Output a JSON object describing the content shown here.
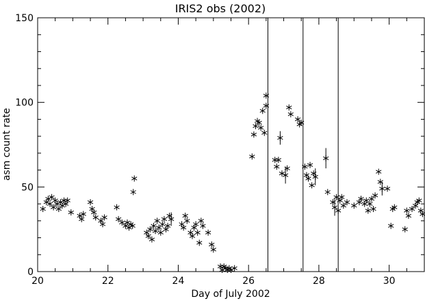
{
  "chart_data": {
    "type": "scatter",
    "title": "IRIS2 obs (2002)",
    "xlabel": "Day of July 2002",
    "ylabel": "asm count rate",
    "xlim": [
      20,
      31
    ],
    "ylim": [
      0,
      150
    ],
    "x_ticks": [
      20,
      22,
      24,
      26,
      28,
      30
    ],
    "x_tick_labels": [
      "20",
      "22",
      "24",
      "26",
      "28",
      "30"
    ],
    "y_ticks": [
      0,
      50,
      100,
      150
    ],
    "y_tick_labels": [
      "0",
      "50",
      "100",
      "150"
    ],
    "grid": false,
    "marker": "asterisk",
    "color": "#000000",
    "vertical_lines": [
      26.55,
      27.55,
      28.55
    ],
    "series": [
      {
        "points": [
          [
            20.15,
            37,
            0
          ],
          [
            20.25,
            41,
            0
          ],
          [
            20.3,
            43,
            0
          ],
          [
            20.35,
            40,
            0
          ],
          [
            20.4,
            44,
            0
          ],
          [
            20.45,
            38,
            0
          ],
          [
            20.5,
            42,
            0
          ],
          [
            20.55,
            40,
            0
          ],
          [
            20.6,
            37,
            0
          ],
          [
            20.65,
            41,
            0
          ],
          [
            20.7,
            39,
            0
          ],
          [
            20.75,
            42,
            0
          ],
          [
            20.8,
            40,
            0
          ],
          [
            20.85,
            42,
            0
          ],
          [
            20.95,
            35,
            0
          ],
          [
            21.2,
            33,
            0
          ],
          [
            21.25,
            31,
            0
          ],
          [
            21.3,
            34,
            0
          ],
          [
            21.5,
            41,
            0
          ],
          [
            21.55,
            37,
            0
          ],
          [
            21.6,
            35,
            0
          ],
          [
            21.65,
            32,
            0
          ],
          [
            21.8,
            30,
            0
          ],
          [
            21.85,
            28,
            0
          ],
          [
            21.9,
            32,
            0
          ],
          [
            22.25,
            38,
            0
          ],
          [
            22.3,
            31,
            0
          ],
          [
            22.4,
            29,
            0
          ],
          [
            22.5,
            27,
            0
          ],
          [
            22.55,
            29,
            0
          ],
          [
            22.6,
            26,
            0
          ],
          [
            22.65,
            28,
            0
          ],
          [
            22.7,
            27,
            0
          ],
          [
            22.72,
            47,
            0
          ],
          [
            22.75,
            55,
            0
          ],
          [
            23.1,
            23,
            0
          ],
          [
            23.15,
            21,
            0
          ],
          [
            23.2,
            25,
            0
          ],
          [
            23.25,
            19,
            0
          ],
          [
            23.3,
            27,
            0
          ],
          [
            23.35,
            24,
            0
          ],
          [
            23.4,
            30,
            0
          ],
          [
            23.45,
            26,
            0
          ],
          [
            23.5,
            23,
            0
          ],
          [
            23.55,
            28,
            0
          ],
          [
            23.6,
            31,
            0
          ],
          [
            23.65,
            25,
            0
          ],
          [
            23.7,
            27,
            0
          ],
          [
            23.75,
            33,
            0
          ],
          [
            23.8,
            31,
            4
          ],
          [
            24.1,
            28,
            0
          ],
          [
            24.15,
            26,
            0
          ],
          [
            24.2,
            33,
            0
          ],
          [
            24.25,
            30,
            0
          ],
          [
            24.35,
            23,
            0
          ],
          [
            24.4,
            21,
            0
          ],
          [
            24.45,
            26,
            0
          ],
          [
            24.5,
            28,
            0
          ],
          [
            24.55,
            23,
            0
          ],
          [
            24.6,
            17,
            0
          ],
          [
            24.65,
            30,
            0
          ],
          [
            24.7,
            27,
            0
          ],
          [
            24.85,
            23,
            0
          ],
          [
            24.95,
            16,
            0
          ],
          [
            25.0,
            13,
            0
          ],
          [
            25.2,
            3,
            0
          ],
          [
            25.25,
            1,
            0
          ],
          [
            25.3,
            3,
            0
          ],
          [
            25.35,
            2,
            0
          ],
          [
            25.4,
            1,
            0
          ],
          [
            25.45,
            2,
            0
          ],
          [
            25.5,
            1,
            0
          ],
          [
            25.6,
            2,
            0
          ],
          [
            26.1,
            68,
            0
          ],
          [
            26.15,
            81,
            0
          ],
          [
            26.2,
            86,
            0
          ],
          [
            26.25,
            89,
            0
          ],
          [
            26.3,
            88,
            0
          ],
          [
            26.35,
            85,
            0
          ],
          [
            26.4,
            95,
            0
          ],
          [
            26.45,
            82,
            0
          ],
          [
            26.5,
            104,
            0
          ],
          [
            26.5,
            98,
            0
          ],
          [
            26.75,
            66,
            0
          ],
          [
            26.8,
            62,
            0
          ],
          [
            26.85,
            66,
            0
          ],
          [
            26.9,
            79,
            4
          ],
          [
            26.95,
            58,
            0
          ],
          [
            27.05,
            57,
            5
          ],
          [
            27.1,
            61,
            0
          ],
          [
            27.15,
            97,
            0
          ],
          [
            27.2,
            93,
            0
          ],
          [
            27.4,
            90,
            0
          ],
          [
            27.45,
            87,
            0
          ],
          [
            27.5,
            88,
            0
          ],
          [
            27.6,
            62,
            0
          ],
          [
            27.65,
            57,
            0
          ],
          [
            27.7,
            55,
            0
          ],
          [
            27.75,
            63,
            0
          ],
          [
            27.8,
            51,
            0
          ],
          [
            27.85,
            58,
            0
          ],
          [
            27.9,
            56,
            5
          ],
          [
            28.2,
            67,
            6
          ],
          [
            28.25,
            47,
            0
          ],
          [
            28.4,
            41,
            0
          ],
          [
            28.45,
            38,
            5
          ],
          [
            28.5,
            44,
            0
          ],
          [
            28.55,
            36,
            0
          ],
          [
            28.6,
            42,
            0
          ],
          [
            28.65,
            44,
            0
          ],
          [
            28.7,
            39,
            0
          ],
          [
            28.8,
            41,
            0
          ],
          [
            29.0,
            39,
            0
          ],
          [
            29.15,
            41,
            0
          ],
          [
            29.2,
            43,
            0
          ],
          [
            29.3,
            40,
            0
          ],
          [
            29.35,
            42,
            0
          ],
          [
            29.4,
            36,
            0
          ],
          [
            29.45,
            40,
            0
          ],
          [
            29.5,
            43,
            0
          ],
          [
            29.55,
            37,
            0
          ],
          [
            29.6,
            45,
            0
          ],
          [
            29.7,
            59,
            0
          ],
          [
            29.75,
            53,
            0
          ],
          [
            29.8,
            49,
            4
          ],
          [
            29.95,
            49,
            0
          ],
          [
            30.05,
            27,
            0
          ],
          [
            30.1,
            37,
            0
          ],
          [
            30.15,
            38,
            0
          ],
          [
            30.5,
            36,
            0
          ],
          [
            30.55,
            33,
            0
          ],
          [
            30.65,
            37,
            0
          ],
          [
            30.75,
            39,
            0
          ],
          [
            30.8,
            41,
            0
          ],
          [
            30.85,
            42,
            0
          ],
          [
            30.9,
            36,
            0
          ],
          [
            30.95,
            34,
            0
          ],
          [
            30.45,
            25,
            0
          ]
        ]
      }
    ]
  }
}
